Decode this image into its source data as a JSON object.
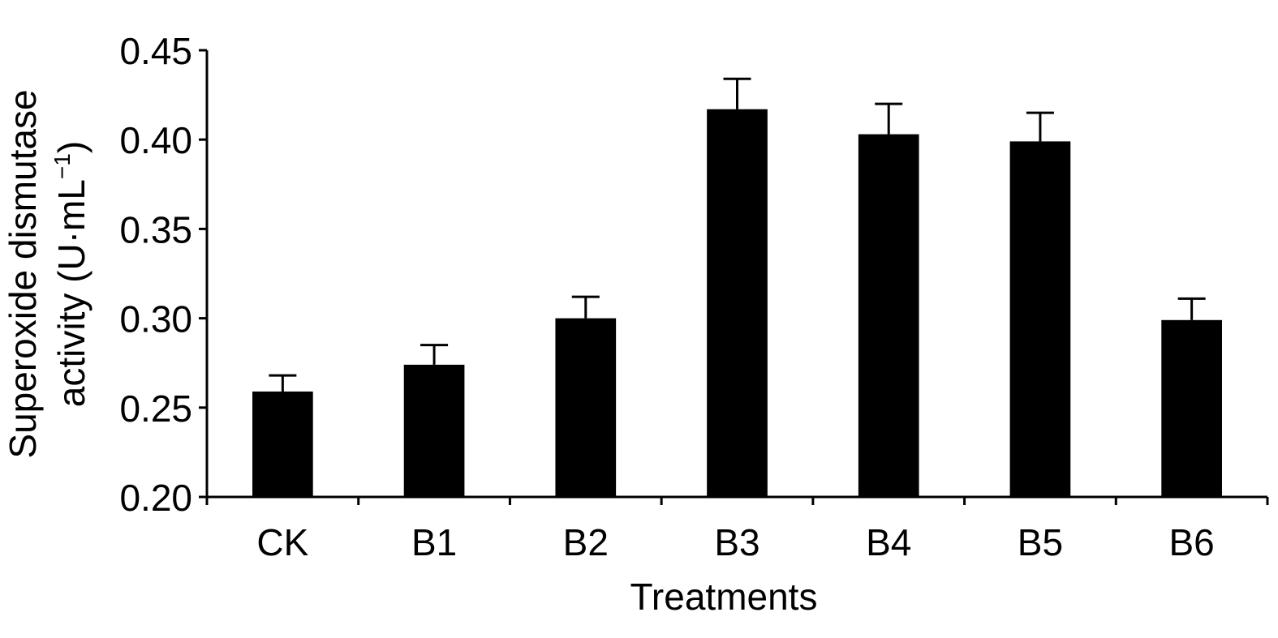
{
  "chart_data": {
    "type": "bar",
    "categories": [
      "CK",
      "B1",
      "B2",
      "B3",
      "B4",
      "B5",
      "B6"
    ],
    "values": [
      0.259,
      0.274,
      0.3,
      0.417,
      0.403,
      0.399,
      0.299
    ],
    "errors": [
      0.009,
      0.011,
      0.012,
      0.017,
      0.017,
      0.016,
      0.012
    ],
    "xlabel": "Treatments",
    "ylabel_line1": "Superoxide dismutase",
    "ylabel_line2_prefix": "activity (U·mL",
    "ylabel_line2_sup": "−1",
    "ylabel_line2_suffix": ")",
    "ylim": [
      0.2,
      0.45
    ],
    "yticks": [
      "0.20",
      "0.25",
      "0.30",
      "0.35",
      "0.40",
      "0.45"
    ],
    "grid": false,
    "bar_color": "#000000"
  }
}
